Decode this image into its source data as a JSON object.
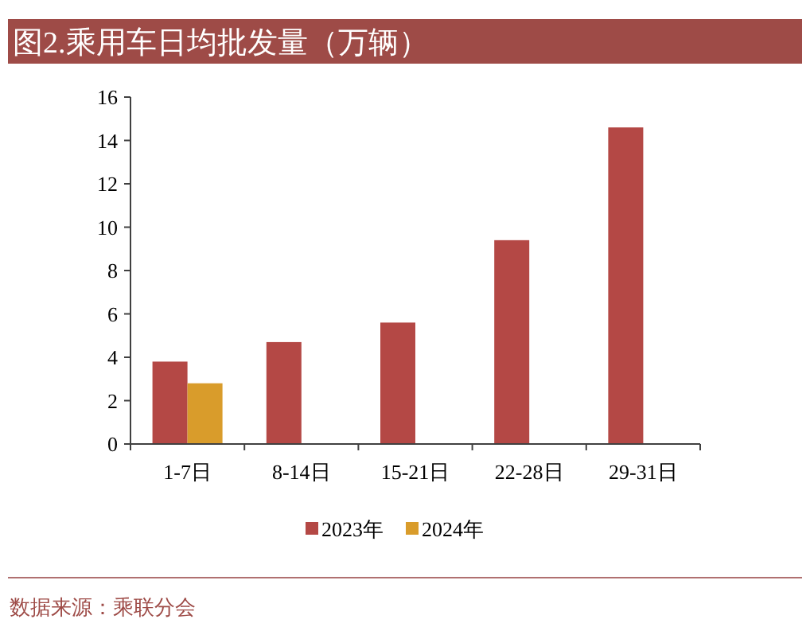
{
  "chart_data": {
    "type": "bar",
    "title": "图2.乘用车日均批发量（万辆）",
    "categories": [
      "1-7日",
      "8-14日",
      "15-21日",
      "22-28日",
      "29-31日"
    ],
    "series": [
      {
        "name": "2023年",
        "color": "#b44845",
        "values": [
          3.8,
          4.7,
          5.6,
          9.4,
          14.6
        ]
      },
      {
        "name": "2024年",
        "color": "#d99c2b",
        "values": [
          2.8,
          null,
          null,
          null,
          null
        ]
      }
    ],
    "ylim": [
      0,
      16
    ],
    "yticks": [
      0,
      2,
      4,
      6,
      8,
      10,
      12,
      14,
      16
    ],
    "grid": false,
    "legend": "bottom",
    "annotations": [
      "数据来源：乘联分会"
    ]
  }
}
